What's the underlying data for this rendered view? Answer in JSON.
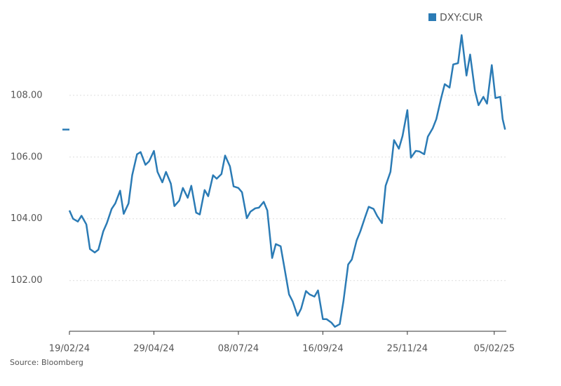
{
  "chart_data": {
    "type": "line",
    "source": "Source: Bloomberg",
    "x": [
      "19/02/24",
      "22/02/24",
      "26/02/24",
      "29/02/24",
      "04/03/24",
      "07/03/24",
      "11/03/24",
      "14/03/24",
      "18/03/24",
      "21/03/24",
      "25/03/24",
      "28/03/24",
      "01/04/24",
      "04/04/24",
      "08/04/24",
      "11/04/24",
      "15/04/24",
      "18/04/24",
      "22/04/24",
      "25/04/24",
      "29/04/24",
      "02/05/24",
      "06/05/24",
      "09/05/24",
      "13/05/24",
      "16/05/24",
      "20/05/24",
      "23/05/24",
      "27/05/24",
      "30/05/24",
      "03/06/24",
      "06/06/24",
      "10/06/24",
      "13/06/24",
      "17/06/24",
      "20/06/24",
      "24/06/24",
      "27/06/24",
      "01/07/24",
      "04/07/24",
      "08/07/24",
      "11/07/24",
      "15/07/24",
      "18/07/24",
      "22/07/24",
      "25/07/24",
      "29/07/24",
      "01/08/24",
      "05/08/24",
      "08/08/24",
      "12/08/24",
      "15/08/24",
      "19/08/24",
      "22/08/24",
      "26/08/24",
      "29/08/24",
      "02/09/24",
      "05/09/24",
      "09/09/24",
      "12/09/24",
      "16/09/24",
      "19/09/24",
      "23/09/24",
      "26/09/24",
      "30/09/24",
      "03/10/24",
      "07/10/24",
      "10/10/24",
      "14/10/24",
      "17/10/24",
      "21/10/24",
      "24/10/24",
      "28/10/24",
      "31/10/24",
      "04/11/24",
      "07/11/24",
      "11/11/24",
      "14/11/24",
      "18/11/24",
      "21/11/24",
      "25/11/24",
      "28/11/24",
      "02/12/24",
      "05/12/24",
      "09/12/24",
      "12/12/24",
      "16/12/24",
      "19/12/24",
      "23/12/24",
      "26/12/24",
      "30/12/24",
      "02/01/25",
      "06/01/25",
      "09/01/25",
      "13/01/25",
      "16/01/25",
      "20/01/25",
      "23/01/25",
      "27/01/25",
      "30/01/25",
      "03/02/25",
      "06/02/25",
      "10/02/25",
      "12/02/25",
      "14/02/25"
    ],
    "series": [
      {
        "name": "DXY:CUR",
        "color": "#2b7bb5",
        "values": [
          104.27,
          104.0,
          103.91,
          104.1,
          103.82,
          103.02,
          102.91,
          103.0,
          103.59,
          103.86,
          104.32,
          104.5,
          104.91,
          104.16,
          104.5,
          105.41,
          106.09,
          106.16,
          105.75,
          105.86,
          106.2,
          105.52,
          105.18,
          105.52,
          105.14,
          104.41,
          104.59,
          105.0,
          104.68,
          105.07,
          104.2,
          104.14,
          104.93,
          104.73,
          105.41,
          105.3,
          105.45,
          106.05,
          105.7,
          105.05,
          105.0,
          104.86,
          104.02,
          104.23,
          104.34,
          104.36,
          104.55,
          104.27,
          102.73,
          103.18,
          103.11,
          102.45,
          101.55,
          101.32,
          100.86,
          101.09,
          101.66,
          101.55,
          101.48,
          101.68,
          100.75,
          100.75,
          100.64,
          100.5,
          100.59,
          101.32,
          102.52,
          102.68,
          103.3,
          103.59,
          104.05,
          104.39,
          104.32,
          104.09,
          103.86,
          105.07,
          105.52,
          106.55,
          106.27,
          106.68,
          107.52,
          105.98,
          106.2,
          106.18,
          106.09,
          106.66,
          106.93,
          107.23,
          107.91,
          108.36,
          108.25,
          109.0,
          109.04,
          109.95,
          108.64,
          109.32,
          108.14,
          107.68,
          107.95,
          107.73,
          108.98,
          107.91,
          107.95,
          107.23,
          106.89
        ]
      }
    ],
    "xlim": [
      "19/02/24",
      "15/02/25"
    ],
    "xticks": [
      "19/02/24",
      "29/04/24",
      "08/07/24",
      "16/09/24",
      "25/11/24",
      "05/02/25"
    ],
    "ylim": [
      100.38,
      110.2
    ],
    "yticks": [
      {
        "value": 102,
        "label": "102.00"
      },
      {
        "value": 104,
        "label": "104.00"
      },
      {
        "value": 106,
        "label": "106.00"
      },
      {
        "value": 108,
        "label": "108.00"
      }
    ],
    "grid": true,
    "legend": "top-right"
  }
}
